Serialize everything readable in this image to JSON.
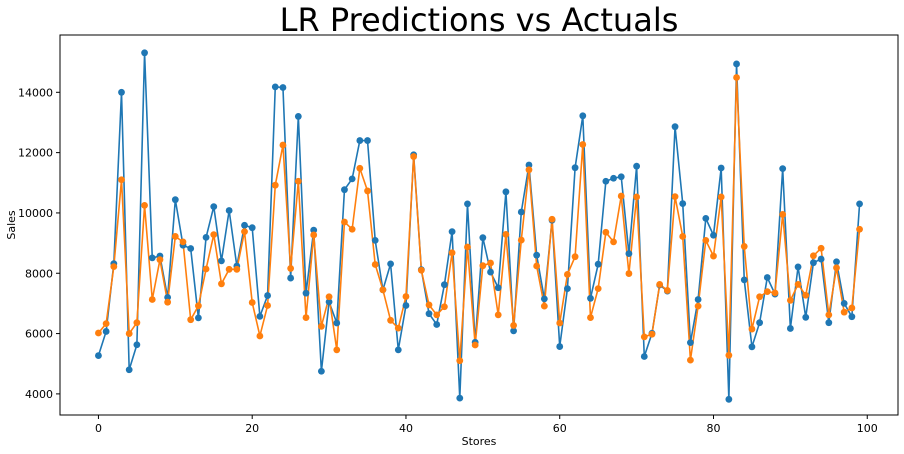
{
  "chart_data": {
    "type": "line",
    "title": "LR Predictions vs Actuals",
    "xlabel": "Stores",
    "ylabel": "Sales",
    "xlim": [
      -5,
      104
    ],
    "ylim": [
      3300,
      15900
    ],
    "xticks": [
      0,
      20,
      40,
      60,
      80,
      100
    ],
    "yticks": [
      4000,
      6000,
      8000,
      10000,
      12000,
      14000
    ],
    "grid": false,
    "legend": "none",
    "series": [
      {
        "color": "#1f77b4",
        "values": [
          5270,
          6070,
          8320,
          14000,
          4800,
          5630,
          15310,
          8510,
          8570,
          7200,
          10440,
          8930,
          8820,
          6520,
          9190,
          10210,
          8410,
          10080,
          8240,
          9590,
          9510,
          6570,
          7260,
          14180,
          14160,
          7840,
          13200,
          7340,
          9430,
          4750,
          7050,
          6350,
          10770,
          11130,
          12400,
          12400,
          9090,
          7450,
          8310,
          5460,
          6930,
          11930,
          8120,
          6660,
          6300,
          7620,
          9380,
          3860,
          10300,
          5710,
          9180,
          8040,
          7520,
          10700,
          6090,
          10030,
          11590,
          8600,
          7150,
          9760,
          5570,
          7490,
          11500,
          13220,
          7170,
          8300,
          11050,
          11150,
          11200,
          8650,
          11550,
          5240,
          6010,
          7610,
          7410,
          12860,
          10310,
          5700,
          7130,
          9820,
          9260,
          11490,
          3820,
          14940,
          7780,
          5560,
          6360,
          7860,
          7310,
          11470,
          6170,
          8210,
          6540,
          8350,
          8470,
          6360,
          8380,
          7000,
          6560,
          10300
        ]
      },
      {
        "color": "#ff7f0e",
        "values": [
          6020,
          6330,
          8220,
          11100,
          6000,
          6360,
          10250,
          7130,
          8450,
          7040,
          9220,
          9040,
          6460,
          6920,
          8140,
          9280,
          7650,
          8130,
          8130,
          9380,
          7030,
          5920,
          6930,
          10920,
          12250,
          8160,
          11050,
          6530,
          9270,
          6240,
          7220,
          5460,
          9700,
          9460,
          11480,
          10730,
          8290,
          7450,
          6440,
          6180,
          7230,
          11870,
          8100,
          6950,
          6620,
          6890,
          8680,
          5100,
          8870,
          5620,
          8250,
          8340,
          6620,
          9290,
          6270,
          9100,
          11430,
          8240,
          6910,
          9790,
          6350,
          7960,
          8550,
          12270,
          6530,
          7490,
          9360,
          9040,
          10560,
          7990,
          10530,
          5890,
          5980,
          7630,
          7430,
          10540,
          9220,
          5120,
          6910,
          9090,
          8570,
          10530,
          5280,
          14490,
          8890,
          6150,
          7220,
          7390,
          7350,
          9950,
          7100,
          7630,
          7270,
          8580,
          8830,
          6620,
          8180,
          6710,
          6850,
          9460
        ]
      }
    ]
  }
}
